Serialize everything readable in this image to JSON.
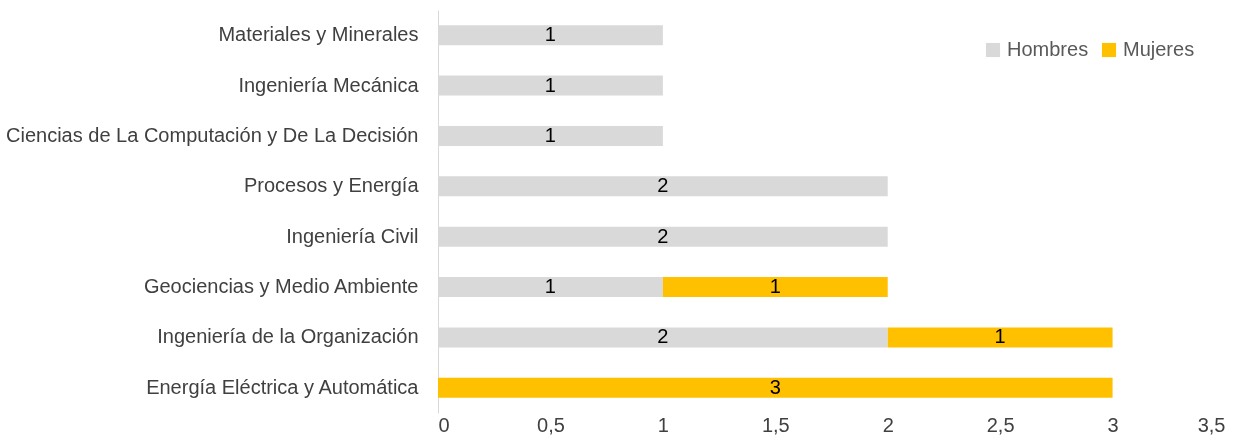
{
  "chart_data": {
    "type": "bar",
    "orientation": "horizontal",
    "stacked": true,
    "categories": [
      "Materiales y Minerales",
      "Ingeniería Mecánica",
      "Ciencias de La Computación y De La Decisión",
      "Procesos y Energía",
      "Ingeniería Civil",
      "Geociencias y Medio Ambiente",
      "Ingeniería de la Organización",
      "Energía Eléctrica y Automática"
    ],
    "series": [
      {
        "name": "Hombres",
        "color": "#d9d9d9",
        "values": [
          1,
          1,
          1,
          2,
          2,
          1,
          2,
          null
        ]
      },
      {
        "name": "Mujeres",
        "color": "#ffc000",
        "values": [
          null,
          null,
          null,
          null,
          null,
          1,
          1,
          3
        ]
      }
    ],
    "xlim": [
      0,
      3.5
    ],
    "xticks": [
      0,
      {
        "value": 0.5,
        "label": "0,5"
      },
      1,
      {
        "value": 1.5,
        "label": "1,5"
      },
      2,
      {
        "value": 2.5,
        "label": "2,5"
      },
      3,
      {
        "value": 3.5,
        "label": "3,5"
      }
    ],
    "data_labels": true,
    "grid": false,
    "legend": "top right"
  }
}
